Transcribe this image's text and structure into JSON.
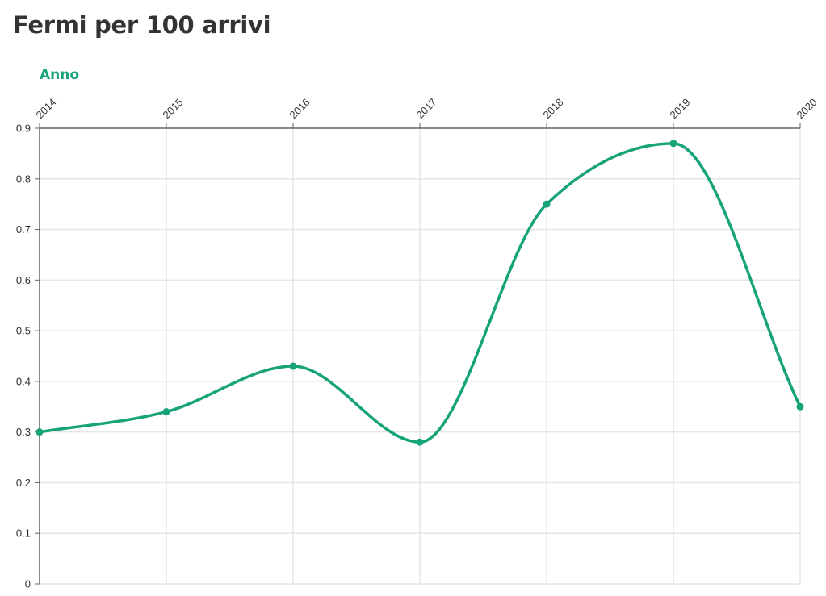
{
  "chart_data": {
    "type": "line",
    "title": "Fermi per 100 arrivi",
    "xlabel": "Anno",
    "ylabel": "",
    "x": [
      "2014",
      "2015",
      "2016",
      "2017",
      "2018",
      "2019",
      "2020"
    ],
    "series": [
      {
        "values": [
          0.3,
          0.34,
          0.43,
          0.28,
          0.75,
          0.87,
          0.35
        ]
      }
    ],
    "yticks": [
      "0",
      "0.1",
      "0.2",
      "0.3",
      "0.4",
      "0.5",
      "0.6",
      "0.7",
      "0.8",
      "0.9"
    ],
    "ylim": [
      0,
      0.9
    ],
    "x_axis_position": "top",
    "grid": true,
    "line_color": "#17a37a",
    "grid_color": "#e6e6e6",
    "axis_color": "#666666"
  }
}
